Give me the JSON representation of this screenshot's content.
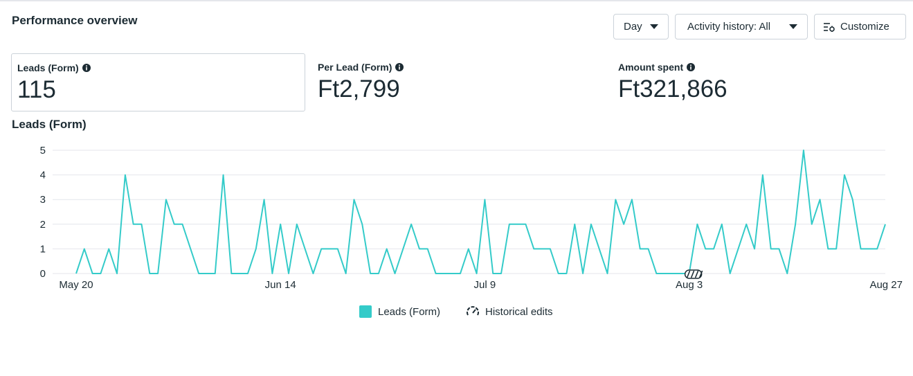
{
  "header": {
    "title": "Performance overview",
    "day_label": "Day",
    "activity_label": "Activity history: All",
    "customize_label": "Customize"
  },
  "metrics": [
    {
      "label": "Leads (Form)",
      "value": "115"
    },
    {
      "label": "Per Lead (Form)",
      "value": "Ft2,799"
    },
    {
      "label": "Amount spent",
      "value": "Ft321,866"
    }
  ],
  "icons": {
    "dropdown": "caret-down-icon",
    "customize": "sliders-icon",
    "info": "info-icon",
    "historical": "gauge-icon",
    "edit_marker": "edit-marker-icon"
  },
  "colors": {
    "series": "#34cbc9",
    "text": "#1c2b33",
    "grid": "#e4e6eb",
    "border": "#cbd2d9"
  },
  "chart_data": {
    "type": "line",
    "title": "Leads (Form)",
    "ylim": [
      0,
      5
    ],
    "yticks": [
      0,
      1,
      2,
      3,
      4,
      5
    ],
    "x_tick_labels": [
      "May 20",
      "Jun 14",
      "Jul 9",
      "Aug 3",
      "Aug 27"
    ],
    "x_start": "2024-05-20",
    "x_end": "2024-08-27",
    "grid": true,
    "legend_position": "bottom-center",
    "series": [
      {
        "name": "Leads (Form)",
        "color": "#34cbc9",
        "values": [
          0,
          1,
          0,
          0,
          1,
          0,
          4,
          2,
          2,
          0,
          0,
          3,
          2,
          2,
          1,
          0,
          0,
          0,
          4,
          0,
          0,
          0,
          1,
          3,
          0,
          2,
          0,
          2,
          1,
          0,
          1,
          1,
          1,
          0,
          3,
          2,
          0,
          0,
          1,
          0,
          1,
          2,
          1,
          1,
          0,
          0,
          0,
          0,
          1,
          0,
          3,
          0,
          0,
          2,
          2,
          2,
          1,
          1,
          1,
          0,
          0,
          2,
          0,
          2,
          1,
          0,
          3,
          2,
          3,
          1,
          1,
          0,
          0,
          0,
          0,
          0,
          2,
          1,
          1,
          2,
          0,
          1,
          2,
          1,
          4,
          1,
          1,
          0,
          2,
          5,
          2,
          3,
          1,
          1,
          4,
          3,
          1,
          1,
          1,
          2
        ]
      }
    ],
    "legend": [
      "Leads (Form)",
      "Historical edits"
    ]
  }
}
